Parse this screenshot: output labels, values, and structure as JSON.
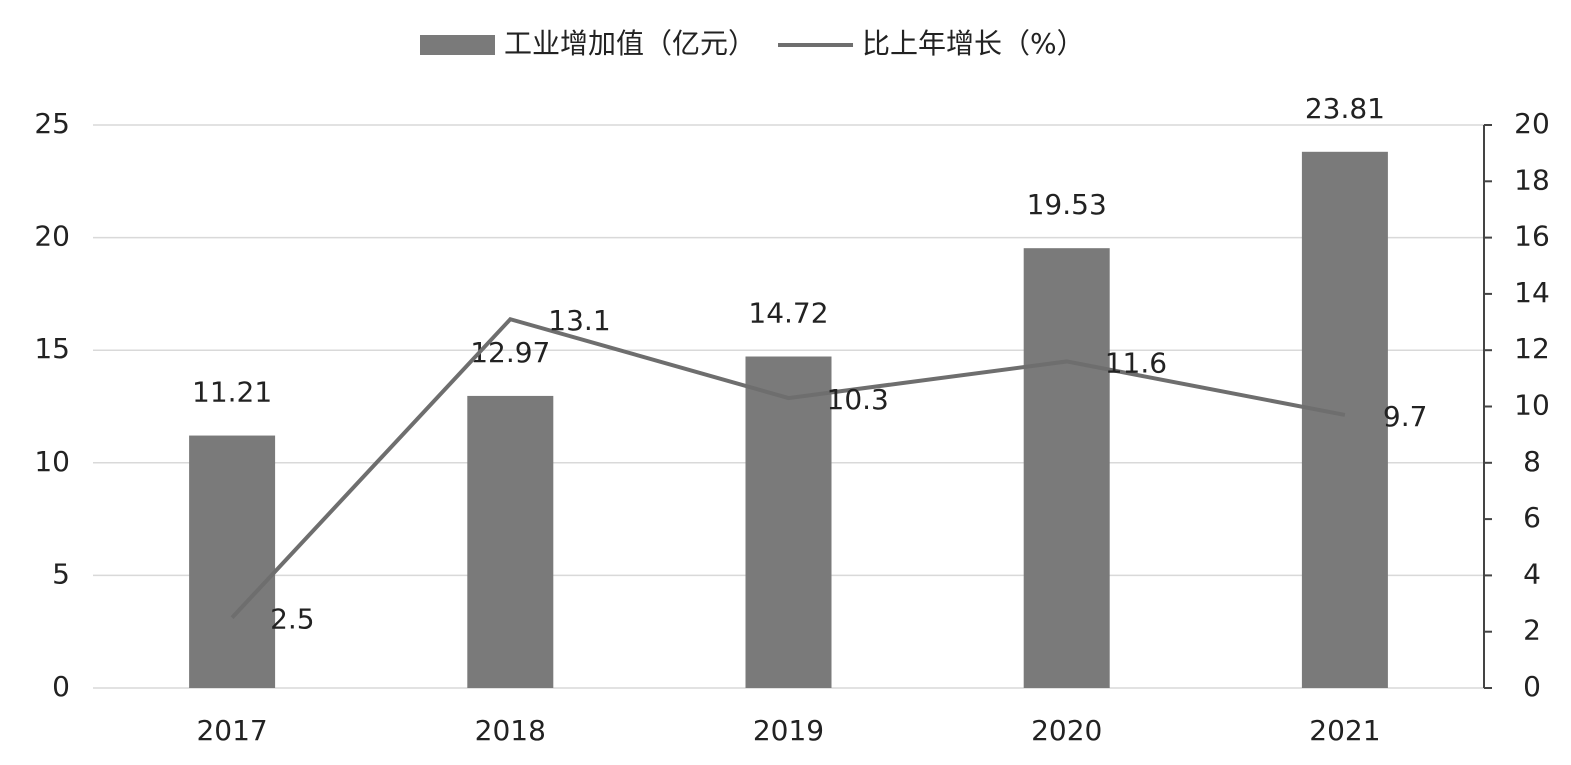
{
  "chart_data": {
    "type": "bar",
    "categories": [
      "2017",
      "2018",
      "2019",
      "2020",
      "2021"
    ],
    "series": [
      {
        "name": "工业增加值（亿元）",
        "type": "bar",
        "color": "#7a7a7a",
        "values": [
          11.21,
          12.97,
          14.72,
          19.53,
          23.81
        ]
      },
      {
        "name": "比上年增长（%）",
        "type": "line",
        "axis": "y2",
        "color": "#6e6e6e",
        "values": [
          2.5,
          13.1,
          10.3,
          11.6,
          9.7
        ]
      }
    ],
    "ylim": [
      0,
      25
    ],
    "yticks": [
      0,
      5,
      10,
      15,
      20,
      25
    ],
    "y2lim": [
      0,
      20
    ],
    "y2ticks": [
      0,
      2,
      4,
      6,
      8,
      10,
      12,
      14,
      16,
      18,
      20
    ],
    "grid": true,
    "legend": "top"
  }
}
